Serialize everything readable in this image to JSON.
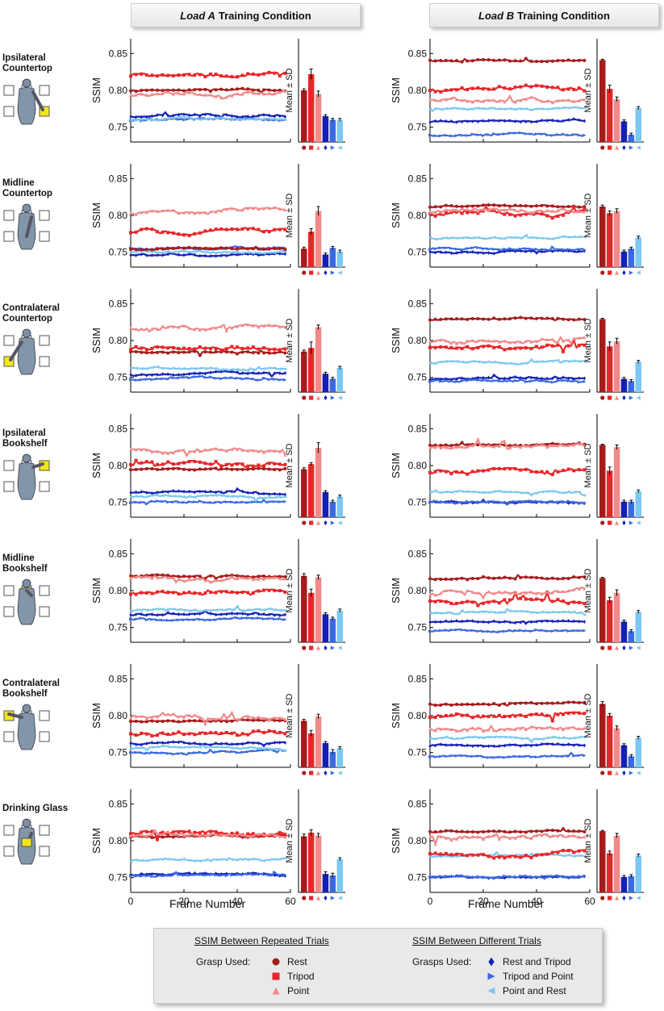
{
  "columns": [
    {
      "emph": "Load A",
      "rest": "Training Condition"
    },
    {
      "emph": "Load B",
      "rest": "Training Condition"
    }
  ],
  "rows": [
    {
      "lines": [
        "Ipsilateral",
        "Countertop"
      ],
      "target": "right-low"
    },
    {
      "lines": [
        "Midline",
        "Countertop"
      ],
      "target": "mid-low"
    },
    {
      "lines": [
        "Contralateral",
        "Countertop"
      ],
      "target": "left-low"
    },
    {
      "lines": [
        "Ipsilateral",
        "Bookshelf"
      ],
      "target": "right-high"
    },
    {
      "lines": [
        "Midline",
        "Bookshelf"
      ],
      "target": "mid-high"
    },
    {
      "lines": [
        "Contralateral",
        "Bookshelf"
      ],
      "target": "left-high"
    },
    {
      "lines": [
        "Drinking Glass"
      ],
      "target": "glass"
    }
  ],
  "axes": {
    "ylabel": "SSIM",
    "xlabel": "Frame Number",
    "bar_ylabel": "Mean ± SD",
    "yticks": [
      "0.75",
      "0.80",
      "0.85"
    ],
    "xticks": [
      "0",
      "20",
      "40",
      "60"
    ]
  },
  "legend": {
    "repeated_title": "SSIM Between Repeated Trials",
    "different_title": "SSIM Between Different Trials",
    "grasp_used": "Grasp Used:",
    "grasps_used": "Grasps Used:",
    "repeated_items": [
      {
        "label": "Rest",
        "marker": "circle",
        "color": "#a61c1c"
      },
      {
        "label": "Tripod",
        "marker": "square",
        "color": "#e8262a"
      },
      {
        "label": "Point",
        "marker": "triangle-up",
        "color": "#f08a8a"
      }
    ],
    "different_items": [
      {
        "label": "Rest and Tripod",
        "marker": "diamond",
        "color": "#1420b4"
      },
      {
        "label": "Tripod and Point",
        "marker": "triangle-right",
        "color": "#3a6ae0"
      },
      {
        "label": "Point and Rest",
        "marker": "triangle-left",
        "color": "#7cc8f0"
      }
    ]
  },
  "chart_data": {
    "type": "line",
    "ylim": [
      0.73,
      0.87
    ],
    "xlim": [
      0,
      60
    ],
    "bar_ylim": [
      0.73,
      0.87
    ],
    "series_names": [
      "Rest",
      "Tripod",
      "Point",
      "Rest and Tripod",
      "Tripod and Point",
      "Point and Rest"
    ],
    "series_colors": [
      "#a61c1c",
      "#e8262a",
      "#f08a8a",
      "#1420b4",
      "#3a6ae0",
      "#7cc8f0"
    ],
    "panels": [
      {
        "column": "Load A",
        "row": "Ipsilateral Countertop",
        "means": [
          0.8,
          0.822,
          0.795,
          0.765,
          0.76,
          0.76
        ],
        "sd": [
          0.002,
          0.007,
          0.004,
          0.002,
          0.002,
          0.002
        ]
      },
      {
        "column": "Load B",
        "row": "Ipsilateral Countertop",
        "means": [
          0.841,
          0.802,
          0.788,
          0.758,
          0.74,
          0.776
        ],
        "sd": [
          0.001,
          0.005,
          0.003,
          0.002,
          0.002,
          0.002
        ]
      },
      {
        "column": "Load A",
        "row": "Midline Countertop",
        "means": [
          0.755,
          0.778,
          0.806,
          0.747,
          0.756,
          0.751
        ],
        "sd": [
          0.002,
          0.004,
          0.006,
          0.002,
          0.002,
          0.002
        ]
      },
      {
        "column": "Load B",
        "row": "Midline Countertop",
        "means": [
          0.812,
          0.803,
          0.806,
          0.751,
          0.755,
          0.77
        ],
        "sd": [
          0.002,
          0.003,
          0.003,
          0.002,
          0.002,
          0.002
        ]
      },
      {
        "column": "Load A",
        "row": "Contralateral Countertop",
        "means": [
          0.785,
          0.79,
          0.818,
          0.755,
          0.748,
          0.763
        ],
        "sd": [
          0.002,
          0.008,
          0.003,
          0.002,
          0.002,
          0.002
        ]
      },
      {
        "column": "Load B",
        "row": "Contralateral Countertop",
        "means": [
          0.829,
          0.792,
          0.799,
          0.748,
          0.745,
          0.771
        ],
        "sd": [
          0.001,
          0.006,
          0.004,
          0.002,
          0.002,
          0.002
        ]
      },
      {
        "column": "Load A",
        "row": "Ipsilateral Bookshelf",
        "means": [
          0.795,
          0.802,
          0.824,
          0.764,
          0.751,
          0.758
        ],
        "sd": [
          0.002,
          0.002,
          0.007,
          0.002,
          0.002,
          0.002
        ]
      },
      {
        "column": "Load B",
        "row": "Ipsilateral Bookshelf",
        "means": [
          0.828,
          0.793,
          0.825,
          0.751,
          0.751,
          0.765
        ],
        "sd": [
          0.001,
          0.005,
          0.003,
          0.002,
          0.002,
          0.002
        ]
      },
      {
        "column": "Load A",
        "row": "Midline Bookshelf",
        "means": [
          0.82,
          0.797,
          0.818,
          0.768,
          0.762,
          0.773
        ],
        "sd": [
          0.003,
          0.005,
          0.003,
          0.002,
          0.002,
          0.002
        ]
      },
      {
        "column": "Load B",
        "row": "Midline Bookshelf",
        "means": [
          0.817,
          0.787,
          0.797,
          0.758,
          0.745,
          0.771
        ],
        "sd": [
          0.001,
          0.004,
          0.004,
          0.002,
          0.002,
          0.002
        ]
      },
      {
        "column": "Load A",
        "row": "Contralateral Bookshelf",
        "means": [
          0.793,
          0.776,
          0.799,
          0.763,
          0.751,
          0.756
        ],
        "sd": [
          0.002,
          0.004,
          0.003,
          0.002,
          0.003,
          0.002
        ]
      },
      {
        "column": "Load B",
        "row": "Contralateral Bookshelf",
        "means": [
          0.816,
          0.8,
          0.783,
          0.76,
          0.745,
          0.77
        ],
        "sd": [
          0.003,
          0.003,
          0.003,
          0.002,
          0.002,
          0.002
        ]
      },
      {
        "column": "Load A",
        "row": "Drinking Glass",
        "means": [
          0.806,
          0.811,
          0.807,
          0.755,
          0.753,
          0.775
        ],
        "sd": [
          0.003,
          0.004,
          0.003,
          0.003,
          0.003,
          0.002
        ]
      },
      {
        "column": "Load B",
        "row": "Drinking Glass",
        "means": [
          0.813,
          0.783,
          0.807,
          0.751,
          0.752,
          0.78
        ],
        "sd": [
          0.001,
          0.003,
          0.003,
          0.002,
          0.002,
          0.002
        ]
      }
    ]
  }
}
